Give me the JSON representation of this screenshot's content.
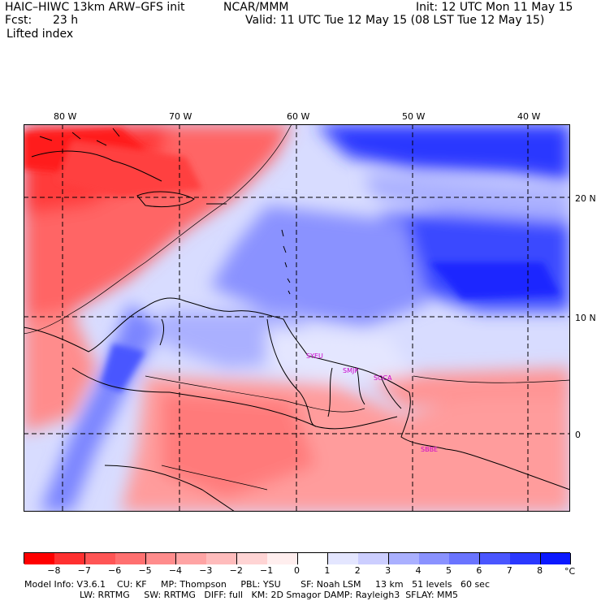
{
  "header": {
    "model": "HAIC–HIWC 13km ARW–GFS init",
    "org": "NCAR/MMM",
    "init": "Init: 12 UTC Mon 11 May 15",
    "fcst_label": "Fcst:",
    "fcst_value": "23 h",
    "valid": "Valid: 11 UTC Tue 12 May 15 (08 LST Tue 12 May 15)",
    "field": "Lifted index"
  },
  "map": {
    "lon_labels": [
      "80 W",
      "70 W",
      "60 W",
      "50 W",
      "40 W"
    ],
    "lat_labels": [
      "20 N",
      "10 N",
      "0"
    ],
    "stations": [
      "SYEU",
      "SMJP",
      "SOCA",
      "SBBE"
    ]
  },
  "colorbar": {
    "ticks": [
      "−8",
      "−7",
      "−6",
      "−5",
      "−4",
      "−3",
      "−2",
      "−1",
      "0",
      "1",
      "2",
      "3",
      "4",
      "5",
      "6",
      "7",
      "8"
    ],
    "unit": "°C",
    "colors": [
      "#ff0000",
      "#ff3030",
      "#ff5555",
      "#ff7070",
      "#ff8c8c",
      "#ffa4a4",
      "#ffbcbc",
      "#ffd4d4",
      "#ffeeee",
      "#ffffff",
      "#e4e6ff",
      "#ccceff",
      "#aab0ff",
      "#8a92ff",
      "#6a74ff",
      "#4a56ff",
      "#2a38ff",
      "#0a18ff"
    ]
  },
  "footer": {
    "line1": "Model Info: V3.6.1    CU: KF     MP: Thompson     PBL: YSU       SF: Noah LSM     13 km   51 levels   60 sec",
    "line2": "LW: RRTMG     SW: RRTMG   DIFF: full   KM: 2D Smagor DAMP: Rayleigh3  SFLAY: MM5"
  }
}
